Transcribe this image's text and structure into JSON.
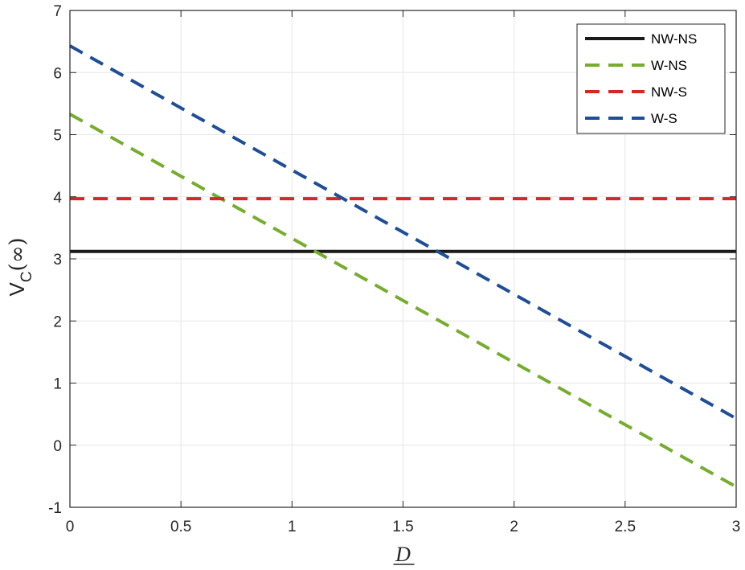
{
  "chart_data": {
    "type": "line",
    "title": "",
    "xlabel": "D",
    "ylabel": {
      "main": "V",
      "subscript": "C",
      "suffix": "(∞)"
    },
    "xlim": [
      0,
      3
    ],
    "ylim": [
      -1,
      7
    ],
    "xticks": [
      0,
      0.5,
      1,
      1.5,
      2,
      2.5,
      3
    ],
    "xtick_labels": [
      "0",
      "0.5",
      "1",
      "1.5",
      "2",
      "2.5",
      "3"
    ],
    "yticks": [
      -1,
      0,
      1,
      2,
      3,
      4,
      5,
      6,
      7
    ],
    "ytick_labels": [
      "-1",
      "0",
      "1",
      "2",
      "3",
      "4",
      "5",
      "6",
      "7"
    ],
    "grid": true,
    "legend_position": "top-right",
    "series": [
      {
        "name": "NW-NS",
        "color": "#1a1a1a",
        "style": "solid",
        "x": [
          0,
          3
        ],
        "y": [
          3.12,
          3.12
        ]
      },
      {
        "name": "W-NS",
        "color": "#77ac30",
        "style": "dashed",
        "x": [
          0,
          3
        ],
        "y": [
          5.33,
          -0.67
        ]
      },
      {
        "name": "NW-S",
        "color": "#d62728",
        "style": "dashed",
        "x": [
          0,
          3
        ],
        "y": [
          3.97,
          3.97
        ]
      },
      {
        "name": "W-S",
        "color": "#1f4e96",
        "style": "dashed",
        "x": [
          0,
          3
        ],
        "y": [
          6.43,
          0.43
        ]
      }
    ]
  }
}
